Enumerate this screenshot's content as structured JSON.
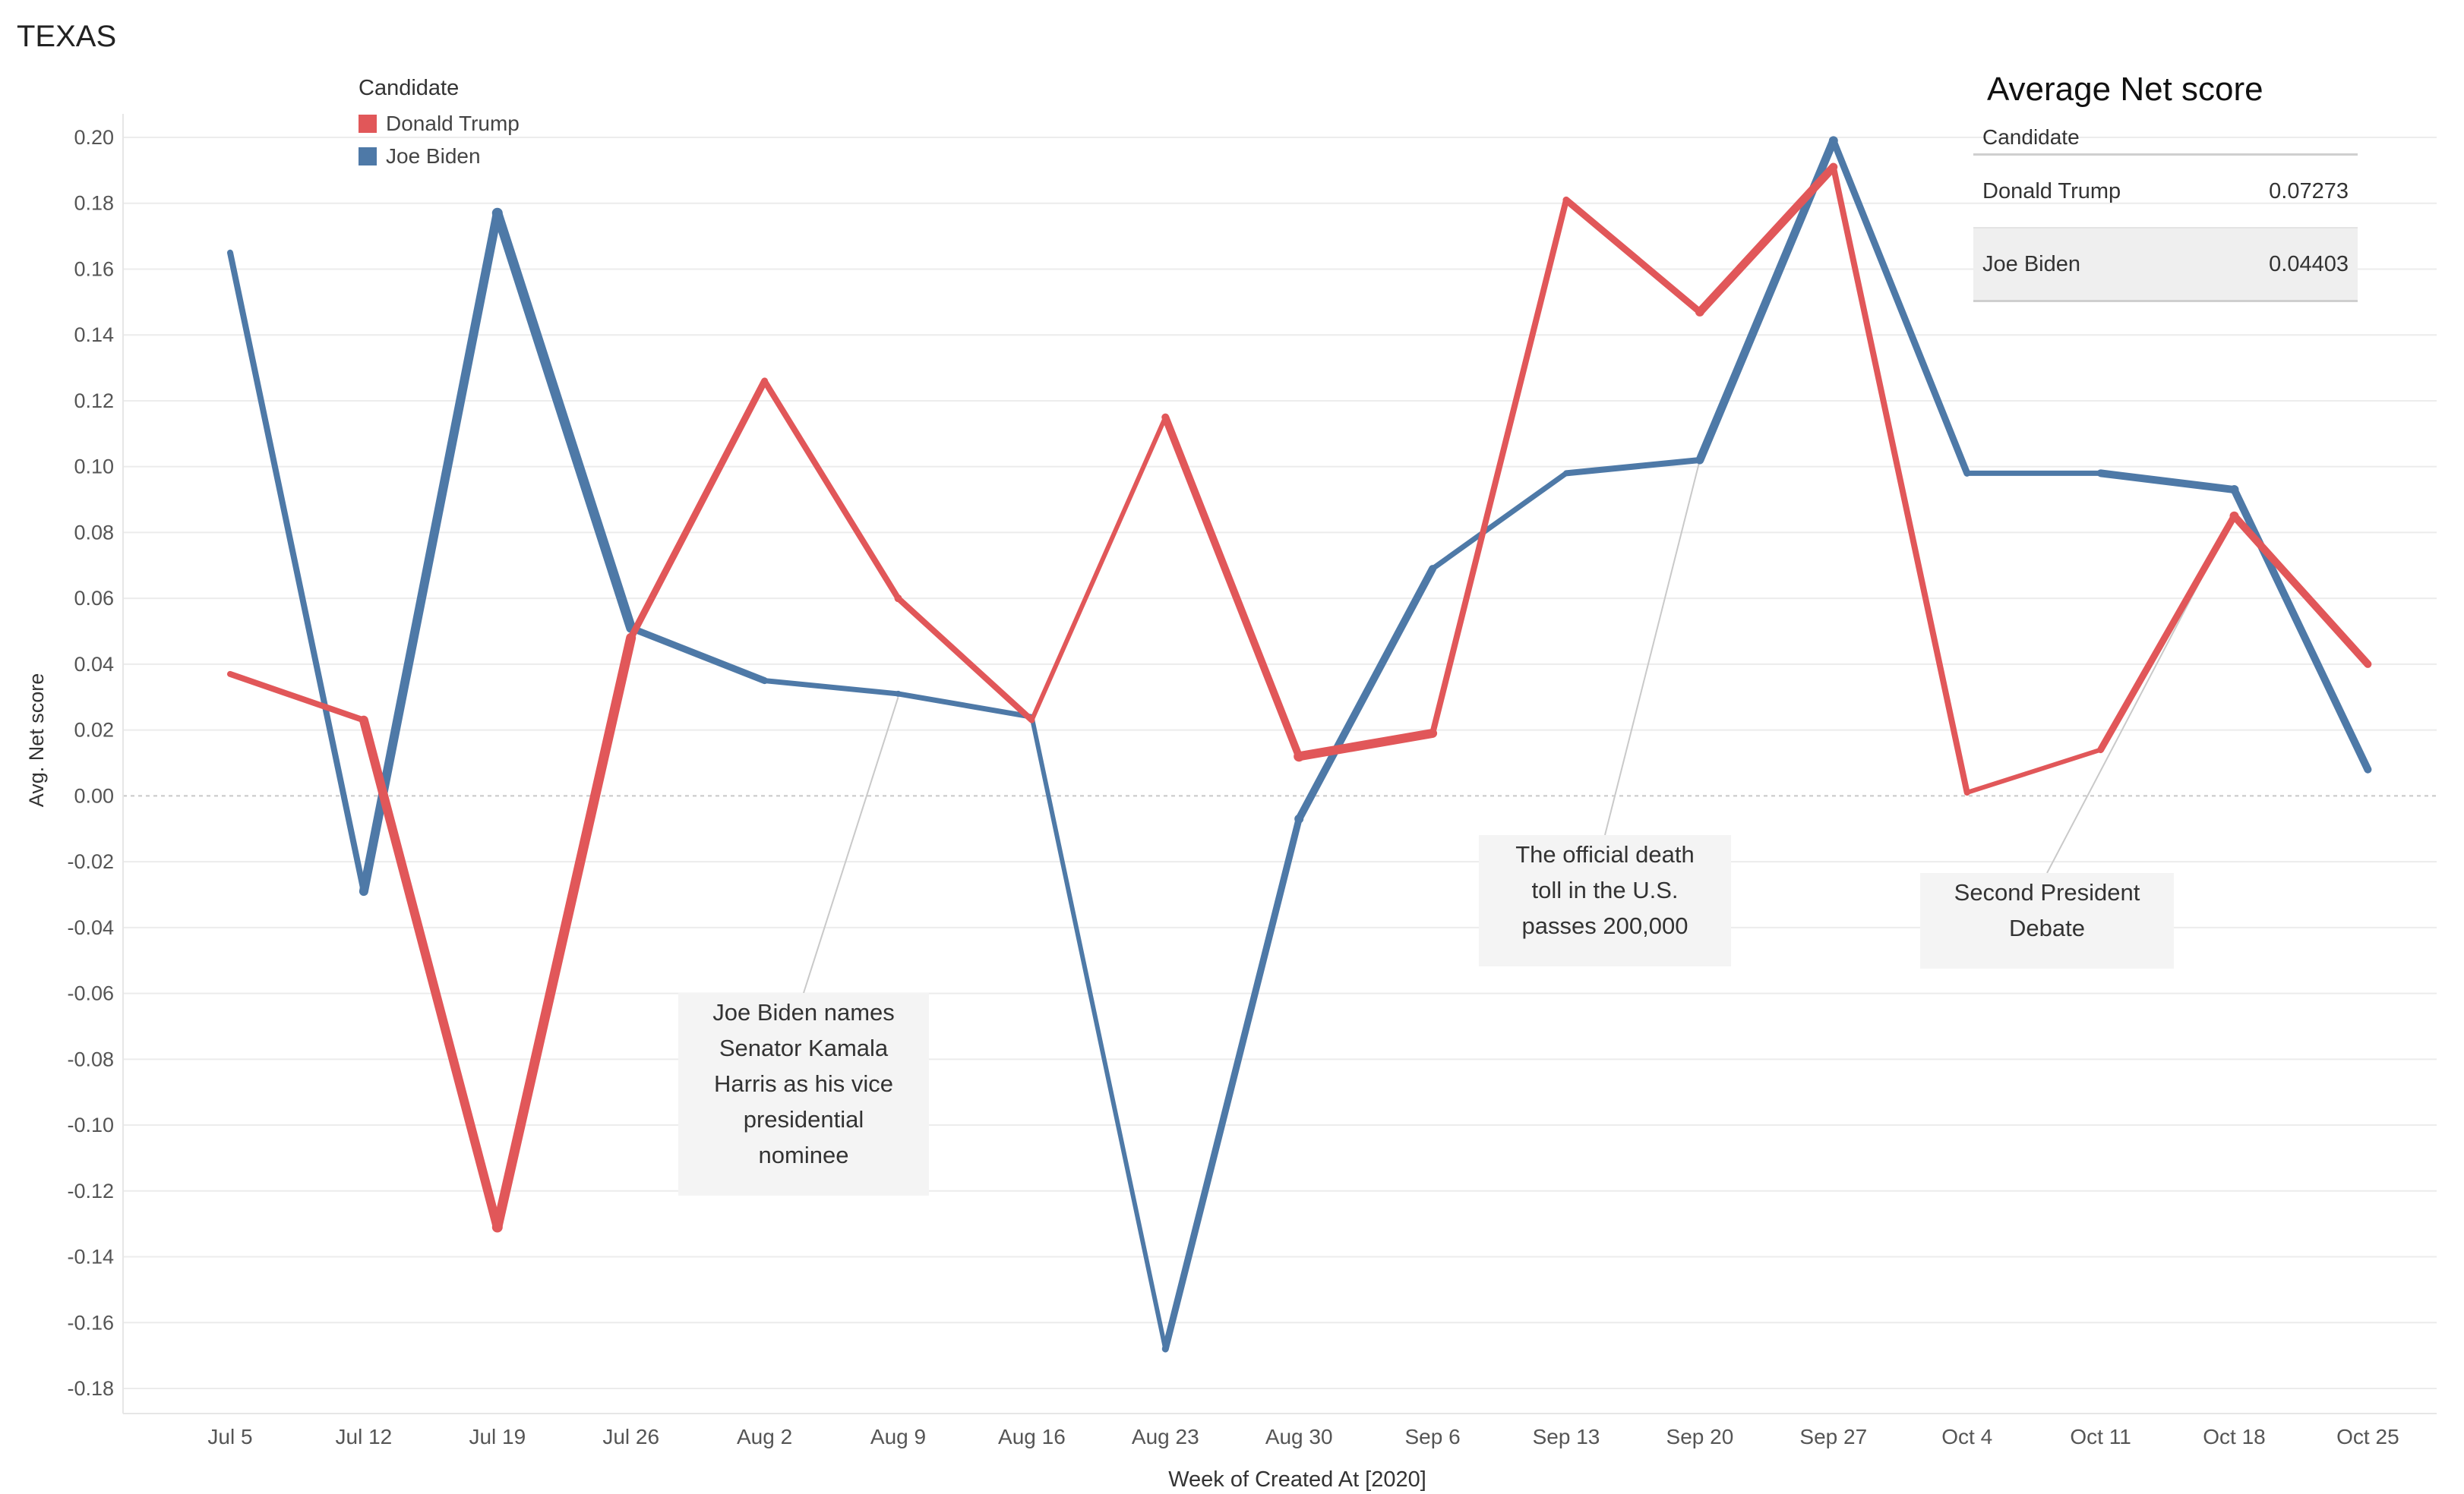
{
  "title": "TEXAS",
  "legend": {
    "title": "Candidate",
    "items": [
      {
        "label": "Donald Trump",
        "color": "#e15759"
      },
      {
        "label": "Joe Biden",
        "color": "#4e79a7"
      }
    ]
  },
  "summary": {
    "title": "Average Net score",
    "header": "Candidate",
    "rows": [
      {
        "label": "Donald Trump",
        "value": "0.07273"
      },
      {
        "label": "Joe Biden",
        "value": "0.04403"
      }
    ]
  },
  "annotations": [
    {
      "text": "Joe Biden names\nSenator Kamala\nHarris as his vice\npresidential\nnominee",
      "anchor_category": "Aug 9",
      "anchor_value": 0.03
    },
    {
      "text": "The official death\ntoll in the U.S.\npasses 200,000",
      "anchor_category": "Sep 20",
      "anchor_value": 0.102
    },
    {
      "text": "Second President\nDebate",
      "anchor_category": "Oct 18",
      "anchor_value": 0.085
    }
  ],
  "chart_data": {
    "type": "line",
    "title": "TEXAS",
    "xlabel": "Week of Created At [2020]",
    "ylabel": "Avg. Net score",
    "ylim": [
      -0.18,
      0.2
    ],
    "yticks": [
      0.2,
      0.18,
      0.16,
      0.14,
      0.12,
      0.1,
      0.08,
      0.06,
      0.04,
      0.02,
      0.0,
      -0.02,
      -0.04,
      -0.06,
      -0.08,
      -0.1,
      -0.12,
      -0.14,
      -0.16,
      -0.18
    ],
    "ytick_labels": [
      "0.20",
      "0.18",
      "0.16",
      "0.14",
      "0.12",
      "0.10",
      "0.08",
      "0.06",
      "0.04",
      "0.02",
      "0.00",
      "-0.02",
      "-0.04",
      "-0.06",
      "-0.08",
      "-0.10",
      "-0.12",
      "-0.14",
      "-0.16",
      "-0.18"
    ],
    "categories": [
      "Jul 5",
      "Jul 12",
      "Jul 19",
      "Jul 26",
      "Aug 2",
      "Aug 9",
      "Aug 16",
      "Aug 23",
      "Aug 30",
      "Sep 6",
      "Sep 13",
      "Sep 20",
      "Sep 27",
      "Oct 4",
      "Oct 11",
      "Oct 18",
      "Oct 25"
    ],
    "series": [
      {
        "name": "Joe Biden",
        "color": "#4e79a7",
        "values": [
          0.165,
          -0.029,
          0.177,
          0.051,
          0.035,
          0.031,
          0.024,
          -0.168,
          -0.007,
          0.069,
          0.098,
          0.102,
          0.199,
          0.098,
          0.098,
          0.093,
          0.008
        ],
        "weights": [
          3,
          5,
          7,
          6,
          3,
          4,
          3,
          3,
          6,
          4,
          3,
          5,
          6,
          3,
          4,
          6,
          4
        ]
      },
      {
        "name": "Donald Trump",
        "color": "#e15759",
        "values": [
          0.037,
          0.023,
          -0.131,
          0.048,
          0.126,
          0.06,
          0.023,
          0.115,
          0.012,
          0.019,
          0.181,
          0.147,
          0.191,
          0.001,
          0.014,
          0.085,
          0.04
        ],
        "weights": [
          3,
          5,
          7,
          6,
          3,
          5,
          3,
          3,
          7,
          5,
          3,
          6,
          5,
          3,
          3,
          6,
          4
        ]
      }
    ]
  }
}
